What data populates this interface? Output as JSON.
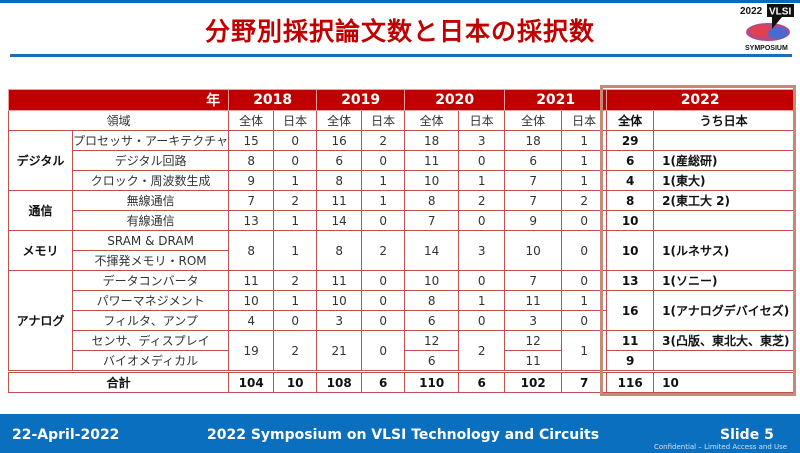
{
  "slide": {
    "title": "分野別採択論文数と日本の採択数",
    "logo_text": "2022 VLSI SYMPOSIUM",
    "accent_color": "#c00000",
    "footer_color": "#0b6fc0"
  },
  "table": {
    "year_label": "年",
    "field_label": "領域",
    "years": [
      "2018",
      "2019",
      "2020",
      "2021",
      "2022"
    ],
    "all_label": "全体",
    "japan_label": "日本",
    "japan_2022_label": "うち日本",
    "groups": [
      "デジタル",
      "通信",
      "メモリ",
      "アナログ"
    ],
    "rows": [
      {
        "field": "プロセッサ・アーキテクチャ",
        "v": [
          "15",
          "0",
          "16",
          "2",
          "18",
          "3",
          "18",
          "1"
        ],
        "all2022": "29",
        "jp2022": ""
      },
      {
        "field": "デジタル回路",
        "v": [
          "8",
          "0",
          "6",
          "0",
          "11",
          "0",
          "6",
          "1"
        ],
        "all2022": "6",
        "jp2022": "1(産総研)"
      },
      {
        "field": "クロック・周波数生成",
        "v": [
          "9",
          "1",
          "8",
          "1",
          "10",
          "1",
          "7",
          "1"
        ],
        "all2022": "4",
        "jp2022": "1(東大)"
      },
      {
        "field": "無線通信",
        "v": [
          "7",
          "2",
          "11",
          "1",
          "8",
          "2",
          "7",
          "2"
        ],
        "all2022": "8",
        "jp2022": "2(東工大 2)"
      },
      {
        "field": "有線通信",
        "v": [
          "13",
          "1",
          "14",
          "0",
          "7",
          "0",
          "9",
          "0"
        ],
        "all2022": "10",
        "jp2022": ""
      },
      {
        "field": "SRAM & DRAM",
        "v": [
          "8",
          "1",
          "8",
          "2",
          "14",
          "3",
          "10",
          "0"
        ],
        "all2022": "10",
        "jp2022": "1(ルネサス)"
      },
      {
        "field": "不揮発メモリ・ROM"
      },
      {
        "field": "データコンバータ",
        "v": [
          "11",
          "2",
          "11",
          "0",
          "10",
          "0",
          "7",
          "0"
        ],
        "all2022": "13",
        "jp2022": "1(ソニー)"
      },
      {
        "field": "パワーマネジメント",
        "v": [
          "10",
          "1",
          "10",
          "0",
          "8",
          "1",
          "11",
          "1"
        ],
        "all2022": "16",
        "jp2022": "1(アナログデバイセズ)"
      },
      {
        "field": "フィルタ、アンプ",
        "v": [
          "4",
          "0",
          "3",
          "0",
          "6",
          "0",
          "3",
          "0"
        ]
      },
      {
        "field": "センサ、ディスプレイ",
        "v": [
          "19",
          "2",
          "21",
          "0",
          "12",
          "2",
          "12",
          "1"
        ],
        "all2022": "11",
        "jp2022": "3(凸版、東北大、東芝)"
      },
      {
        "field": "バイオメディカル",
        "v": [
          "6",
          "11"
        ],
        "all2022": "9",
        "jp2022": ""
      }
    ],
    "total": {
      "label": "合計",
      "v": [
        "104",
        "10",
        "108",
        "6",
        "110",
        "6",
        "102",
        "7"
      ],
      "all2022": "116",
      "jp2022": "10"
    }
  },
  "footer": {
    "date": "22-April-2022",
    "conference": "2022 Symposium on VLSI Technology and Circuits",
    "slide": "Slide 5",
    "confidential": "Confidential – Limited Access and Use"
  }
}
